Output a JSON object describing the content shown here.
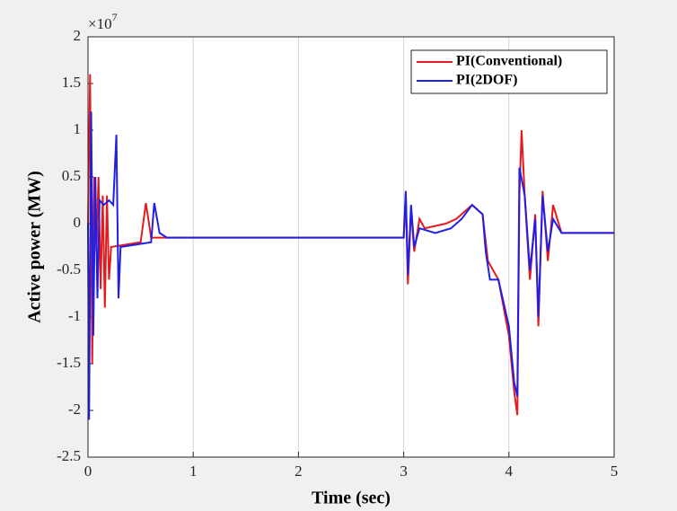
{
  "chart_data": {
    "type": "line",
    "xlabel": "Time (sec)",
    "ylabel": "Active power (MW)",
    "y_scale_label": {
      "base": "×10",
      "exponent": "7"
    },
    "xlim": [
      0,
      5
    ],
    "xticks": [
      0,
      1,
      2,
      3,
      4,
      5
    ],
    "ylim": [
      -2.5,
      2
    ],
    "yticks": [
      -2.5,
      -2,
      -1.5,
      -1,
      -0.5,
      0,
      0.5,
      1,
      1.5,
      2
    ],
    "xgrid": true,
    "legend_position": "upper-right",
    "series": [
      {
        "name": "PI(Conventional)",
        "color": "#e41a1c",
        "x": [
          0,
          0.02,
          0.04,
          0.06,
          0.08,
          0.1,
          0.12,
          0.14,
          0.16,
          0.18,
          0.2,
          0.22,
          0.5,
          0.55,
          0.6,
          0.8,
          3.0,
          3.02,
          3.04,
          3.07,
          3.1,
          3.15,
          3.2,
          3.4,
          3.5,
          3.65,
          3.75,
          3.8,
          3.9,
          4.0,
          4.05,
          4.08,
          4.1,
          4.12,
          4.15,
          4.2,
          4.25,
          4.28,
          4.32,
          4.37,
          4.42,
          4.5,
          5
        ],
        "values": [
          0,
          1.6,
          -1.5,
          0.5,
          -0.3,
          0.5,
          -0.7,
          0.3,
          -0.9,
          0.3,
          -0.6,
          -0.25,
          -0.2,
          0.22,
          -0.15,
          -0.15,
          -0.15,
          0.3,
          -0.65,
          0.15,
          -0.3,
          0.05,
          -0.05,
          0,
          0.05,
          0.2,
          0.1,
          -0.4,
          -0.6,
          -1.2,
          -1.8,
          -2.05,
          0.3,
          1.0,
          0.3,
          -0.6,
          0.1,
          -1.1,
          0.35,
          -0.4,
          0.2,
          -0.1,
          -0.1
        ]
      },
      {
        "name": "PI(2DOF)",
        "color": "#1f1fe6",
        "x": [
          0,
          0.01,
          0.03,
          0.05,
          0.07,
          0.09,
          0.11,
          0.15,
          0.2,
          0.24,
          0.27,
          0.29,
          0.31,
          0.6,
          0.63,
          0.68,
          0.75,
          3.0,
          3.02,
          3.04,
          3.07,
          3.1,
          3.15,
          3.3,
          3.45,
          3.55,
          3.65,
          3.75,
          3.78,
          3.82,
          3.9,
          4.0,
          4.05,
          4.08,
          4.1,
          4.15,
          4.2,
          4.25,
          4.28,
          4.32,
          4.37,
          4.42,
          4.5,
          5
        ],
        "values": [
          0,
          -2.1,
          1.2,
          -1.2,
          0.5,
          -0.8,
          0.25,
          0.2,
          0.25,
          0.2,
          0.95,
          -0.8,
          -0.25,
          -0.2,
          0.22,
          -0.1,
          -0.15,
          -0.15,
          0.35,
          -0.55,
          0.2,
          -0.25,
          -0.05,
          -0.1,
          -0.05,
          0.05,
          0.2,
          0.1,
          -0.3,
          -0.6,
          -0.6,
          -1.1,
          -1.7,
          -1.85,
          0.6,
          0.3,
          -0.5,
          0.05,
          -1.0,
          0.3,
          -0.3,
          0.05,
          -0.1,
          -0.1
        ]
      }
    ]
  }
}
